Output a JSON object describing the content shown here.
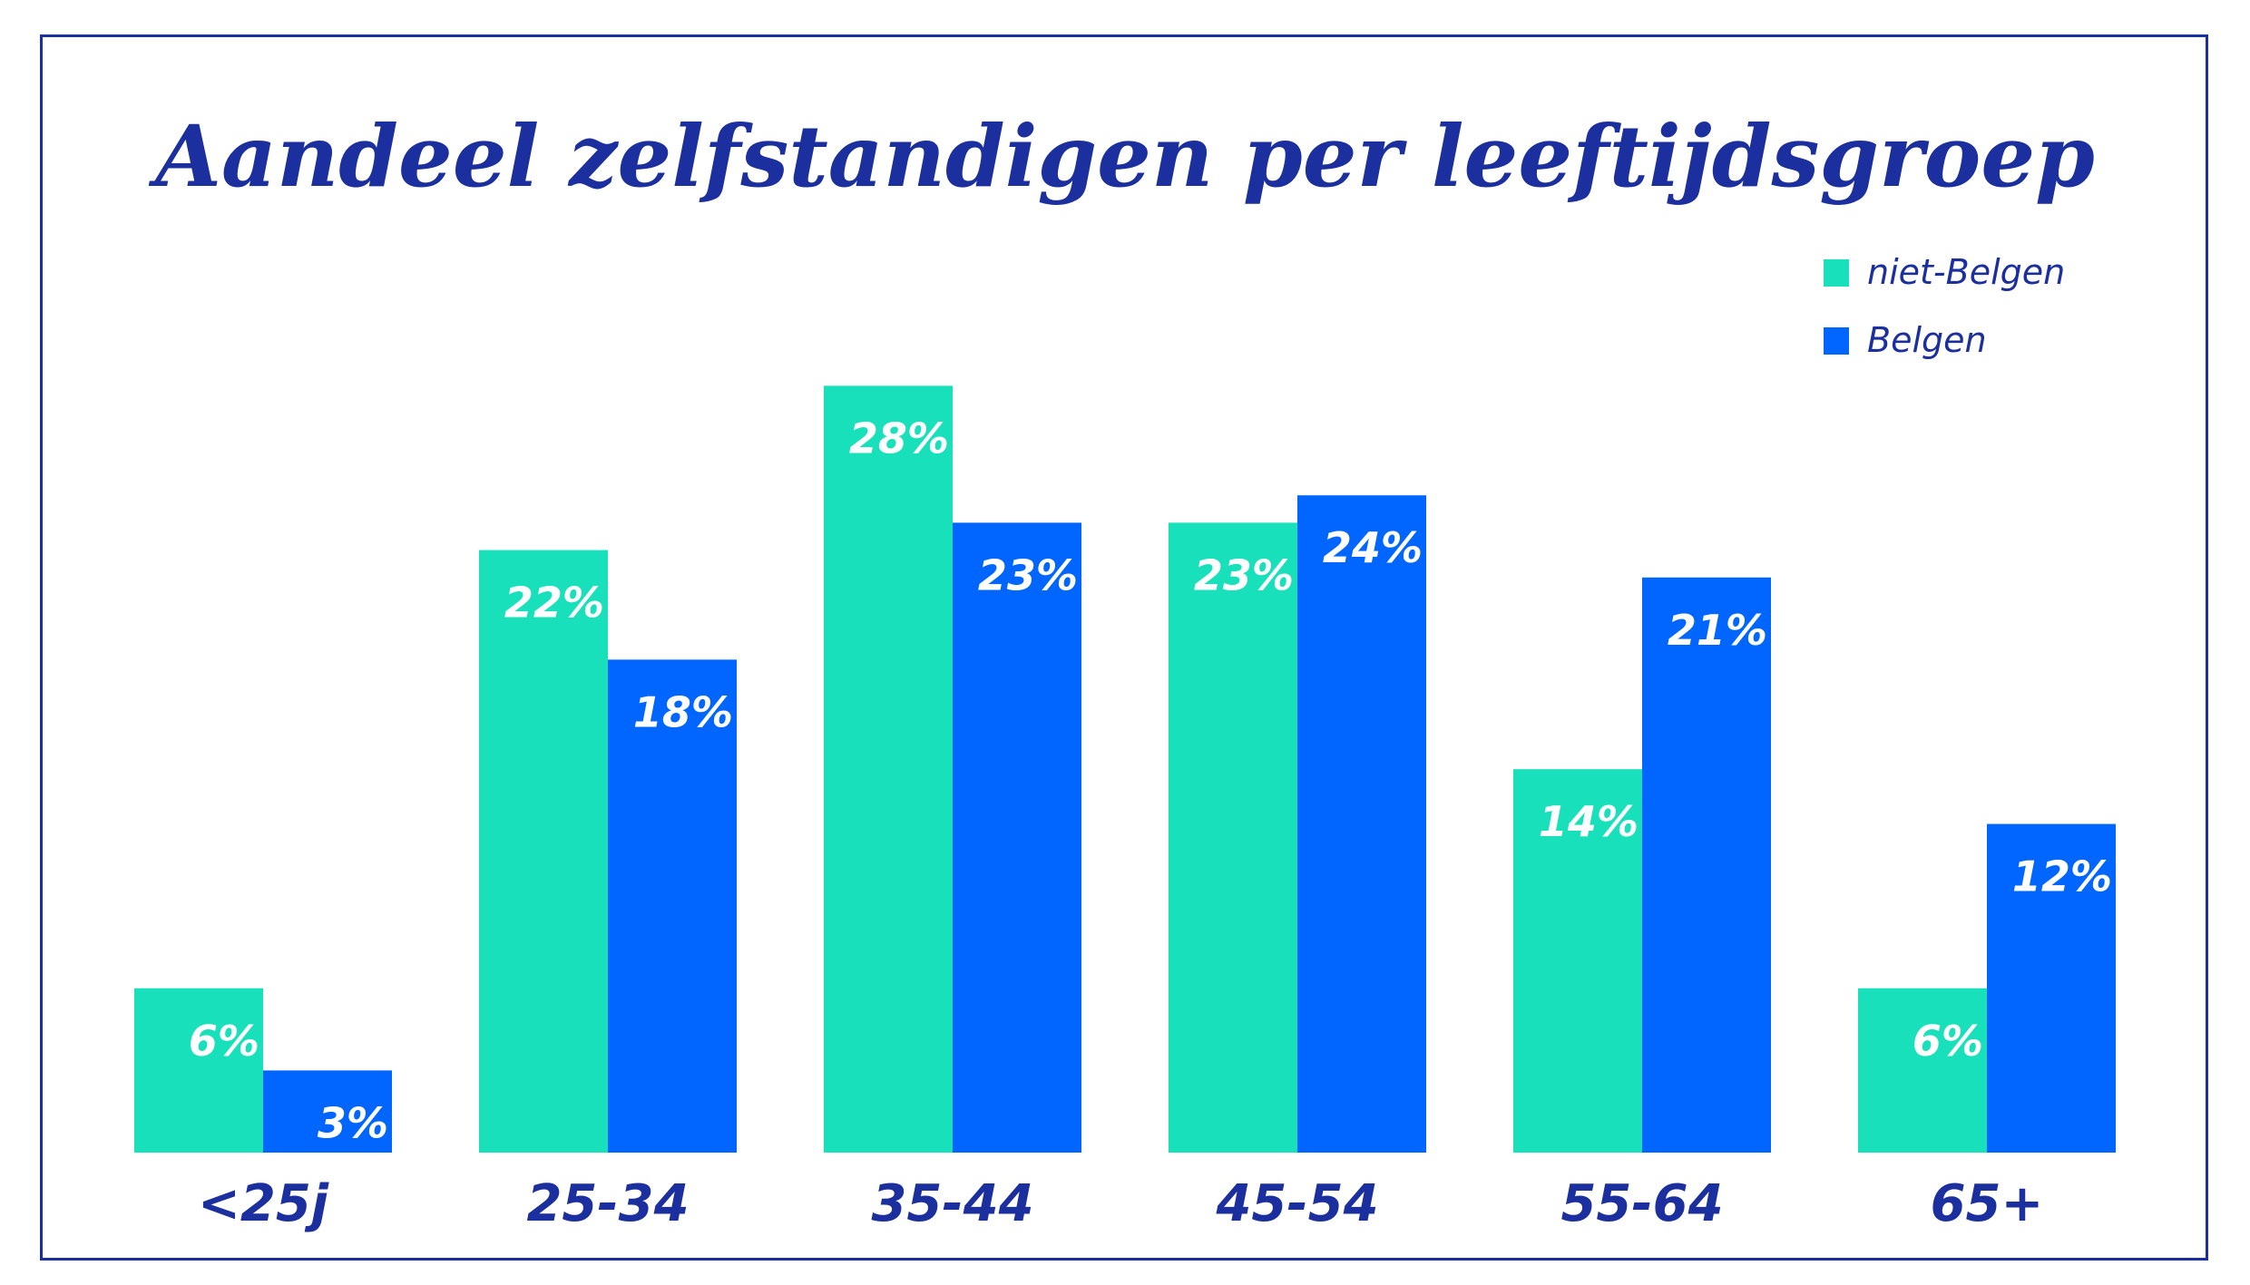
{
  "chart_data": {
    "type": "bar",
    "title": "Aandeel zelfstandigen per leeftijdsgroep",
    "categories": [
      "<25j",
      "25-34",
      "35-44",
      "45-54",
      "55-64",
      "65+"
    ],
    "series": [
      {
        "name": "niet-Belgen",
        "values": [
          6,
          22,
          28,
          23,
          14,
          6
        ],
        "labels": [
          "6%",
          "22%",
          "28%",
          "23%",
          "14%",
          "6%"
        ]
      },
      {
        "name": "Belgen",
        "values": [
          3,
          18,
          23,
          24,
          21,
          12
        ],
        "labels": [
          "3%",
          "18%",
          "23%",
          "24%",
          "21%",
          "12%"
        ]
      }
    ],
    "ylim": [
      0,
      30
    ],
    "legend_position": "top-right",
    "grid": false,
    "colors": {
      "niet-Belgen": "#18e0bb",
      "Belgen": "#0066ff",
      "text": "#1c2f9e"
    }
  }
}
